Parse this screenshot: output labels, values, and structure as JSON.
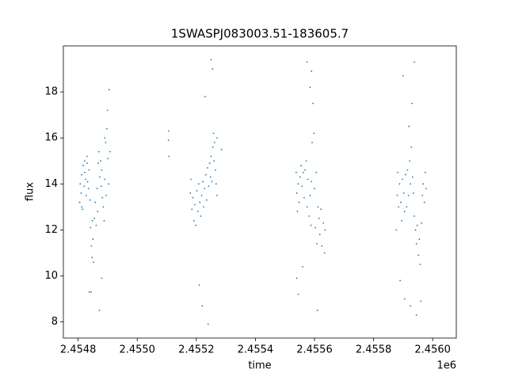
{
  "chart_data": {
    "type": "scatter",
    "title": "1SWASPJ083003.51-183605.7",
    "x_label": "time",
    "y_label": "flux",
    "x_offset_label": "1e6",
    "color": "#1f77b4",
    "grid": false,
    "xlim": [
      2.45475,
      2.45608
    ],
    "ylim": [
      7.3,
      20.0
    ],
    "xticks": [
      2.4548,
      {
        "value": 2.455,
        "label": "2.4550"
      },
      2.4552,
      2.4554,
      2.4556,
      2.4558,
      {
        "value": 2.456,
        "label": "2.4560"
      }
    ],
    "yticks": [
      8,
      10,
      12,
      14,
      16,
      18
    ],
    "x": [
      2.454805,
      2.454807,
      2.45481,
      2.454812,
      2.454815,
      2.454817,
      2.45482,
      2.454822,
      2.454825,
      2.454827,
      2.45483,
      2.454832,
      2.454835,
      2.454837,
      2.45484,
      2.454812,
      2.454822,
      2.45483,
      2.454842,
      2.454845,
      2.454847,
      2.45485,
      2.454852,
      2.454848,
      2.454844,
      2.454855,
      2.454858,
      2.454861,
      2.454864,
      2.454866,
      2.454868,
      2.45487,
      2.454873,
      2.454876,
      2.454878,
      2.45488,
      2.454882,
      2.454885,
      2.454888,
      2.45489,
      2.454893,
      2.454895,
      2.454897,
      2.454899,
      2.454901,
      2.454903,
      2.454905,
      2.45489,
      2.45488,
      2.454908,
      2.454872,
      2.454838,
      2.455106,
      2.455107,
      2.455106,
      2.45518,
      2.455182,
      2.455185,
      2.455188,
      2.455192,
      2.455195,
      2.455198,
      2.455202,
      2.455205,
      2.455208,
      2.455212,
      2.455215,
      2.455218,
      2.455222,
      2.455225,
      2.455228,
      2.455232,
      2.455235,
      2.455238,
      2.455242,
      2.455245,
      2.455248,
      2.45525,
      2.455253,
      2.455256,
      2.455258,
      2.45526,
      2.455262,
      2.455265,
      2.455267,
      2.45527,
      2.45521,
      2.45522,
      2.45524,
      2.45523,
      2.45525,
      2.455255,
      2.45527,
      2.455285,
      2.455538,
      2.45554,
      2.455542,
      2.455545,
      2.455548,
      2.455552,
      2.455555,
      2.455558,
      2.455562,
      2.455565,
      2.455568,
      2.455572,
      2.455575,
      2.455578,
      2.455582,
      2.455585,
      2.455588,
      2.45559,
      2.455592,
      2.455595,
      2.455598,
      2.4556,
      2.455603,
      2.455606,
      2.455608,
      2.455612,
      2.455615,
      2.455618,
      2.455622,
      2.455625,
      2.45563,
      2.455634,
      2.455636,
      2.455575,
      2.455585,
      2.45559,
      2.455545,
      2.45556,
      2.45561,
      2.45554,
      2.455877,
      2.45588,
      2.455882,
      2.455885,
      2.455888,
      2.455892,
      2.455895,
      2.455898,
      2.455902,
      2.455905,
      2.455908,
      2.455912,
      2.455915,
      2.455918,
      2.455922,
      2.455925,
      2.455928,
      2.455932,
      2.455935,
      2.455938,
      2.455942,
      2.455945,
      2.455948,
      2.455952,
      2.455955,
      2.455958,
      2.455962,
      2.455965,
      2.455968,
      2.455972,
      2.455975,
      2.455978,
      2.4559,
      2.45589,
      2.455905,
      2.45592,
      2.45593,
      2.455938,
      2.455925,
      2.45596,
      2.455945
    ],
    "values": [
      13.2,
      14.0,
      13.6,
      14.4,
      12.9,
      14.8,
      13.9,
      15.0,
      14.2,
      13.5,
      14.9,
      14.1,
      13.8,
      14.6,
      13.3,
      13.0,
      14.5,
      15.2,
      12.1,
      11.3,
      10.8,
      11.6,
      10.6,
      12.4,
      9.3,
      12.5,
      13.2,
      12.2,
      13.8,
      12.8,
      14.9,
      15.4,
      14.3,
      15.0,
      13.9,
      14.6,
      13.4,
      13.0,
      12.4,
      14.2,
      15.8,
      13.5,
      16.4,
      17.2,
      15.1,
      14.0,
      18.1,
      16.0,
      9.9,
      15.4,
      8.5,
      9.3,
      15.9,
      15.2,
      16.3,
      13.6,
      14.2,
      12.9,
      13.4,
      12.4,
      13.1,
      12.2,
      13.7,
      12.8,
      14.0,
      13.2,
      12.6,
      13.5,
      14.1,
      13.0,
      13.8,
      14.4,
      13.3,
      14.7,
      13.9,
      14.9,
      14.3,
      15.2,
      14.1,
      15.6,
      16.2,
      15.0,
      15.8,
      14.6,
      14.0,
      13.5,
      9.6,
      8.7,
      7.9,
      17.8,
      19.4,
      19.0,
      16.0,
      15.5,
      14.5,
      13.6,
      12.8,
      14.0,
      13.2,
      14.3,
      14.8,
      13.9,
      14.5,
      13.4,
      14.6,
      15.0,
      13.0,
      14.2,
      12.6,
      13.5,
      12.2,
      14.1,
      15.8,
      17.5,
      16.2,
      13.8,
      12.1,
      14.5,
      11.4,
      13.0,
      12.5,
      11.8,
      12.9,
      11.3,
      12.3,
      11.0,
      12.0,
      19.3,
      18.2,
      18.9,
      9.2,
      10.4,
      8.5,
      9.9,
      12.0,
      13.5,
      14.5,
      13.0,
      14.0,
      13.2,
      12.4,
      14.2,
      13.6,
      12.8,
      14.4,
      13.0,
      14.6,
      13.5,
      15.0,
      14.0,
      15.6,
      14.3,
      13.6,
      12.6,
      12.0,
      11.4,
      12.2,
      10.9,
      11.6,
      10.5,
      12.3,
      13.5,
      14.0,
      13.2,
      14.5,
      13.8,
      18.7,
      9.8,
      9.0,
      16.5,
      17.5,
      19.3,
      8.7,
      8.9,
      8.3
    ]
  }
}
